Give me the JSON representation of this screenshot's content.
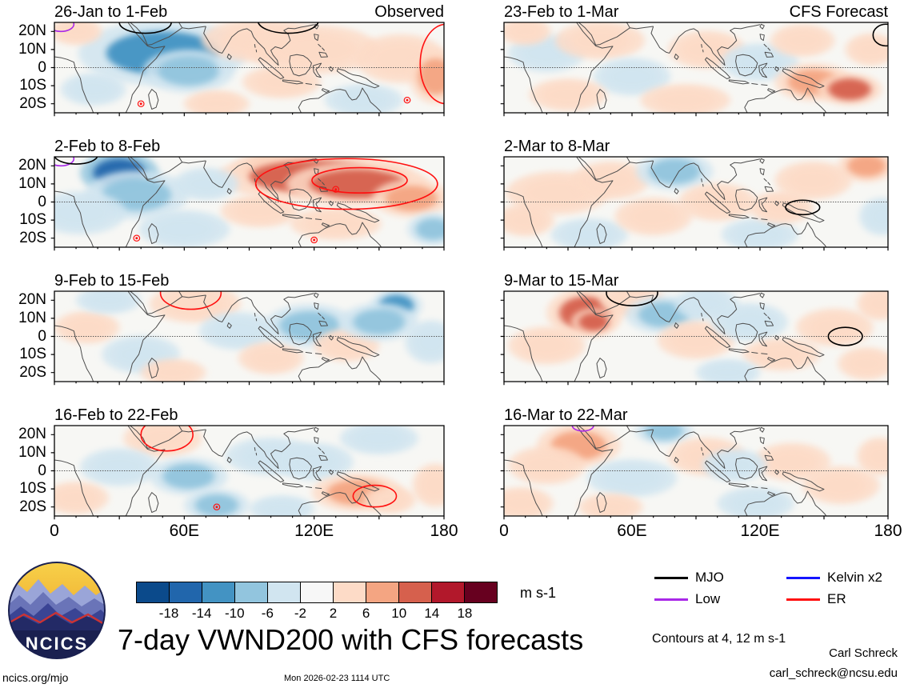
{
  "title": "7-day VWND200 with CFS forecasts",
  "units": "m s-1",
  "logo": {
    "text": "NCICS"
  },
  "footer": {
    "site": "ncics.org/mjo",
    "timestamp": "Mon 2026-02-23 1114 UTC",
    "credit_name": "Carl Schreck",
    "credit_email": "carl_schreck@ncsu.edu"
  },
  "notes": {
    "contours": "Contours at 4, 12 m s-1"
  },
  "axes": {
    "y_ticks": [
      "20N",
      "10N",
      "0",
      "10S",
      "20S"
    ],
    "x_ticks": [
      "0",
      "60E",
      "120E",
      "180"
    ]
  },
  "legend": [
    {
      "key": "MJO",
      "label": "MJO",
      "color": "#000000"
    },
    {
      "key": "Kelvin",
      "label": "Kelvin x2",
      "color": "#1414ff"
    },
    {
      "key": "Low",
      "label": "Low",
      "color": "#a928e8"
    },
    {
      "key": "ER",
      "label": "ER",
      "color": "#ff1010"
    }
  ],
  "chart_data": {
    "type": "heatmap",
    "title": "7-day VWND200 with CFS forecasts",
    "variable": "VWND200 anomaly (filled), wave contours overlaid",
    "units": "m s-1",
    "x_axis": {
      "ticks": [
        "0",
        "60E",
        "120E",
        "180"
      ],
      "range_deg_lon": [
        0,
        180
      ]
    },
    "y_axis": {
      "ticks": [
        "20N",
        "10N",
        "0",
        "10S",
        "20S"
      ],
      "range_deg_lat": [
        -25,
        25
      ]
    },
    "colorbar": {
      "levels": [
        -18,
        -14,
        -10,
        -6,
        -2,
        2,
        6,
        10,
        14,
        18
      ],
      "colors": [
        "#0b4a8b",
        "#2166ac",
        "#4393c3",
        "#92c5de",
        "#d1e5f0",
        "#f7f7f7",
        "#fddbc7",
        "#f4a582",
        "#d6604d",
        "#b2182b",
        "#67001f"
      ]
    },
    "contour_note": "Contours at 4, 12 m s-1",
    "blob_format": [
      "lon",
      "lat",
      "rx_deg",
      "ry_deg",
      "value_ms"
    ],
    "contour_format": [
      "kind",
      "lon",
      "lat",
      "rx_deg",
      "ry_deg"
    ],
    "mark_format": [
      "kind",
      "lon",
      "lat"
    ],
    "panels": [
      {
        "label": "26-Jan to 1-Feb",
        "corner": "Observed",
        "blobs": [
          [
            50,
            8,
            26,
            12,
            -11
          ],
          [
            62,
            -2,
            14,
            8,
            -7
          ],
          [
            18,
            -12,
            10,
            6,
            -5
          ],
          [
            10,
            20,
            8,
            5,
            4
          ],
          [
            95,
            15,
            18,
            8,
            5
          ],
          [
            120,
            10,
            20,
            9,
            6
          ],
          [
            143,
            -18,
            12,
            6,
            -5
          ],
          [
            160,
            5,
            14,
            9,
            6
          ],
          [
            176,
            -5,
            8,
            10,
            7
          ],
          [
            105,
            -8,
            12,
            6,
            3
          ],
          [
            75,
            -20,
            10,
            5,
            3
          ]
        ],
        "contours": [
          [
            "MJO",
            42,
            25,
            12,
            6
          ],
          [
            "MJO",
            108,
            26,
            14,
            7
          ],
          [
            "Low",
            3,
            24,
            6,
            4
          ],
          [
            "ER",
            181,
            2,
            12,
            22
          ]
        ],
        "marks": [
          [
            "ER",
            40,
            -20
          ],
          [
            "ER",
            163,
            -18
          ]
        ]
      },
      {
        "label": "2-Feb to 8-Feb",
        "corner": "",
        "blobs": [
          [
            30,
            16,
            12,
            8,
            -15
          ],
          [
            38,
            4,
            16,
            9,
            -8
          ],
          [
            12,
            -6,
            14,
            8,
            -4
          ],
          [
            60,
            -15,
            14,
            7,
            -3
          ],
          [
            100,
            18,
            12,
            6,
            8
          ],
          [
            120,
            14,
            30,
            9,
            11
          ],
          [
            140,
            10,
            22,
            8,
            13
          ],
          [
            165,
            2,
            12,
            7,
            7
          ],
          [
            95,
            -5,
            12,
            6,
            4
          ],
          [
            175,
            -15,
            8,
            6,
            -6
          ],
          [
            70,
            10,
            10,
            6,
            -4
          ],
          [
            130,
            -12,
            14,
            6,
            3
          ]
        ],
        "contours": [
          [
            "ER",
            135,
            10,
            42,
            14
          ],
          [
            "ER",
            141,
            12,
            22,
            7
          ],
          [
            "Low",
            3,
            24,
            6,
            4
          ],
          [
            "MJO",
            10,
            26,
            10,
            5
          ]
        ],
        "marks": [
          [
            "ER",
            130,
            7
          ],
          [
            "ER",
            38,
            -20
          ],
          [
            "ER",
            120,
            -21
          ]
        ]
      },
      {
        "label": "9-Feb to 15-Feb",
        "corner": "",
        "blobs": [
          [
            15,
            5,
            10,
            6,
            4
          ],
          [
            40,
            -10,
            12,
            7,
            -5
          ],
          [
            65,
            18,
            14,
            7,
            5
          ],
          [
            55,
            -20,
            10,
            5,
            4
          ],
          [
            85,
            3,
            12,
            7,
            -4
          ],
          [
            100,
            -12,
            10,
            6,
            4
          ],
          [
            118,
            6,
            14,
            8,
            -6
          ],
          [
            135,
            -5,
            10,
            6,
            3
          ],
          [
            158,
            17,
            8,
            6,
            -13
          ],
          [
            150,
            8,
            12,
            7,
            -6
          ],
          [
            174,
            -3,
            8,
            8,
            -5
          ],
          [
            25,
            20,
            10,
            5,
            -4
          ]
        ],
        "contours": [
          [
            "ER",
            63,
            24,
            14,
            9
          ]
        ],
        "marks": []
      },
      {
        "label": "16-Feb to 22-Feb",
        "corner": "",
        "blobs": [
          [
            50,
            18,
            12,
            7,
            5
          ],
          [
            30,
            2,
            12,
            7,
            -4
          ],
          [
            62,
            -3,
            12,
            7,
            -7
          ],
          [
            75,
            -19,
            10,
            6,
            -8
          ],
          [
            100,
            8,
            14,
            7,
            -4
          ],
          [
            120,
            5,
            12,
            7,
            -5
          ],
          [
            140,
            -12,
            14,
            7,
            8
          ],
          [
            155,
            -16,
            8,
            5,
            5
          ],
          [
            150,
            18,
            12,
            6,
            -5
          ],
          [
            176,
            -8,
            7,
            8,
            6
          ],
          [
            10,
            -15,
            10,
            6,
            3
          ],
          [
            105,
            -21,
            10,
            5,
            -4
          ]
        ],
        "contours": [
          [
            "ER",
            52,
            20,
            12,
            9
          ],
          [
            "ER",
            148,
            -14,
            10,
            6
          ]
        ],
        "marks": [
          [
            "ER",
            75,
            -20
          ]
        ]
      },
      {
        "label": "23-Feb to 1-Mar",
        "corner": "CFS Forecast",
        "blobs": [
          [
            20,
            8,
            12,
            7,
            -4
          ],
          [
            10,
            20,
            8,
            5,
            4
          ],
          [
            45,
            15,
            14,
            7,
            4
          ],
          [
            60,
            -5,
            12,
            7,
            -3
          ],
          [
            85,
            -18,
            14,
            6,
            5
          ],
          [
            95,
            10,
            12,
            7,
            4
          ],
          [
            120,
            3,
            12,
            7,
            -4
          ],
          [
            145,
            -8,
            12,
            7,
            9
          ],
          [
            162,
            -12,
            10,
            6,
            11
          ],
          [
            172,
            10,
            8,
            6,
            4
          ],
          [
            140,
            15,
            10,
            6,
            4
          ],
          [
            30,
            -15,
            12,
            6,
            3
          ]
        ],
        "contours": [
          [
            "MJO",
            179,
            18,
            6,
            6
          ]
        ],
        "marks": []
      },
      {
        "label": "2-Mar to 8-Mar",
        "corner": "",
        "blobs": [
          [
            25,
            5,
            16,
            8,
            5
          ],
          [
            50,
            12,
            12,
            7,
            4
          ],
          [
            80,
            17,
            12,
            7,
            -6
          ],
          [
            40,
            -18,
            12,
            6,
            -4
          ],
          [
            70,
            -8,
            12,
            7,
            3
          ],
          [
            100,
            0,
            12,
            7,
            4
          ],
          [
            120,
            -18,
            12,
            6,
            -4
          ],
          [
            145,
            12,
            12,
            7,
            4
          ],
          [
            170,
            20,
            9,
            6,
            8
          ],
          [
            177,
            -8,
            7,
            7,
            -5
          ],
          [
            130,
            -3,
            10,
            6,
            3
          ],
          [
            10,
            -10,
            9,
            6,
            3
          ]
        ],
        "contours": [
          [
            "MJO",
            140,
            -3,
            8,
            4
          ]
        ],
        "marks": []
      },
      {
        "label": "9-Mar to 15-Mar",
        "corner": "",
        "blobs": [
          [
            38,
            13,
            12,
            9,
            12
          ],
          [
            42,
            8,
            7,
            5,
            14
          ],
          [
            20,
            -5,
            12,
            7,
            5
          ],
          [
            60,
            20,
            10,
            6,
            5
          ],
          [
            75,
            12,
            12,
            7,
            -7
          ],
          [
            95,
            18,
            10,
            6,
            -4
          ],
          [
            90,
            -2,
            12,
            7,
            4
          ],
          [
            115,
            8,
            12,
            7,
            -5
          ],
          [
            130,
            -10,
            12,
            6,
            4
          ],
          [
            155,
            5,
            12,
            7,
            4
          ],
          [
            176,
            18,
            7,
            6,
            6
          ],
          [
            105,
            -20,
            10,
            5,
            -5
          ],
          [
            170,
            -15,
            9,
            6,
            4
          ]
        ],
        "contours": [
          [
            "MJO",
            60,
            24,
            12,
            7
          ],
          [
            "MJO",
            160,
            0,
            8,
            5
          ]
        ],
        "marks": []
      },
      {
        "label": "16-Mar to 22-Mar",
        "corner": "",
        "blobs": [
          [
            35,
            14,
            13,
            8,
            8
          ],
          [
            20,
            3,
            12,
            7,
            4
          ],
          [
            8,
            -18,
            10,
            6,
            6
          ],
          [
            60,
            -4,
            14,
            7,
            -5
          ],
          [
            75,
            22,
            9,
            5,
            -9
          ],
          [
            95,
            8,
            12,
            7,
            3
          ],
          [
            118,
            -18,
            12,
            6,
            -4
          ],
          [
            135,
            5,
            12,
            7,
            4
          ],
          [
            158,
            -8,
            12,
            7,
            4
          ],
          [
            176,
            8,
            7,
            7,
            5
          ],
          [
            50,
            -20,
            10,
            5,
            3
          ],
          [
            108,
            3,
            10,
            6,
            -3
          ]
        ],
        "contours": [
          [
            "Low",
            37,
            25,
            5,
            3
          ]
        ],
        "marks": []
      }
    ]
  }
}
